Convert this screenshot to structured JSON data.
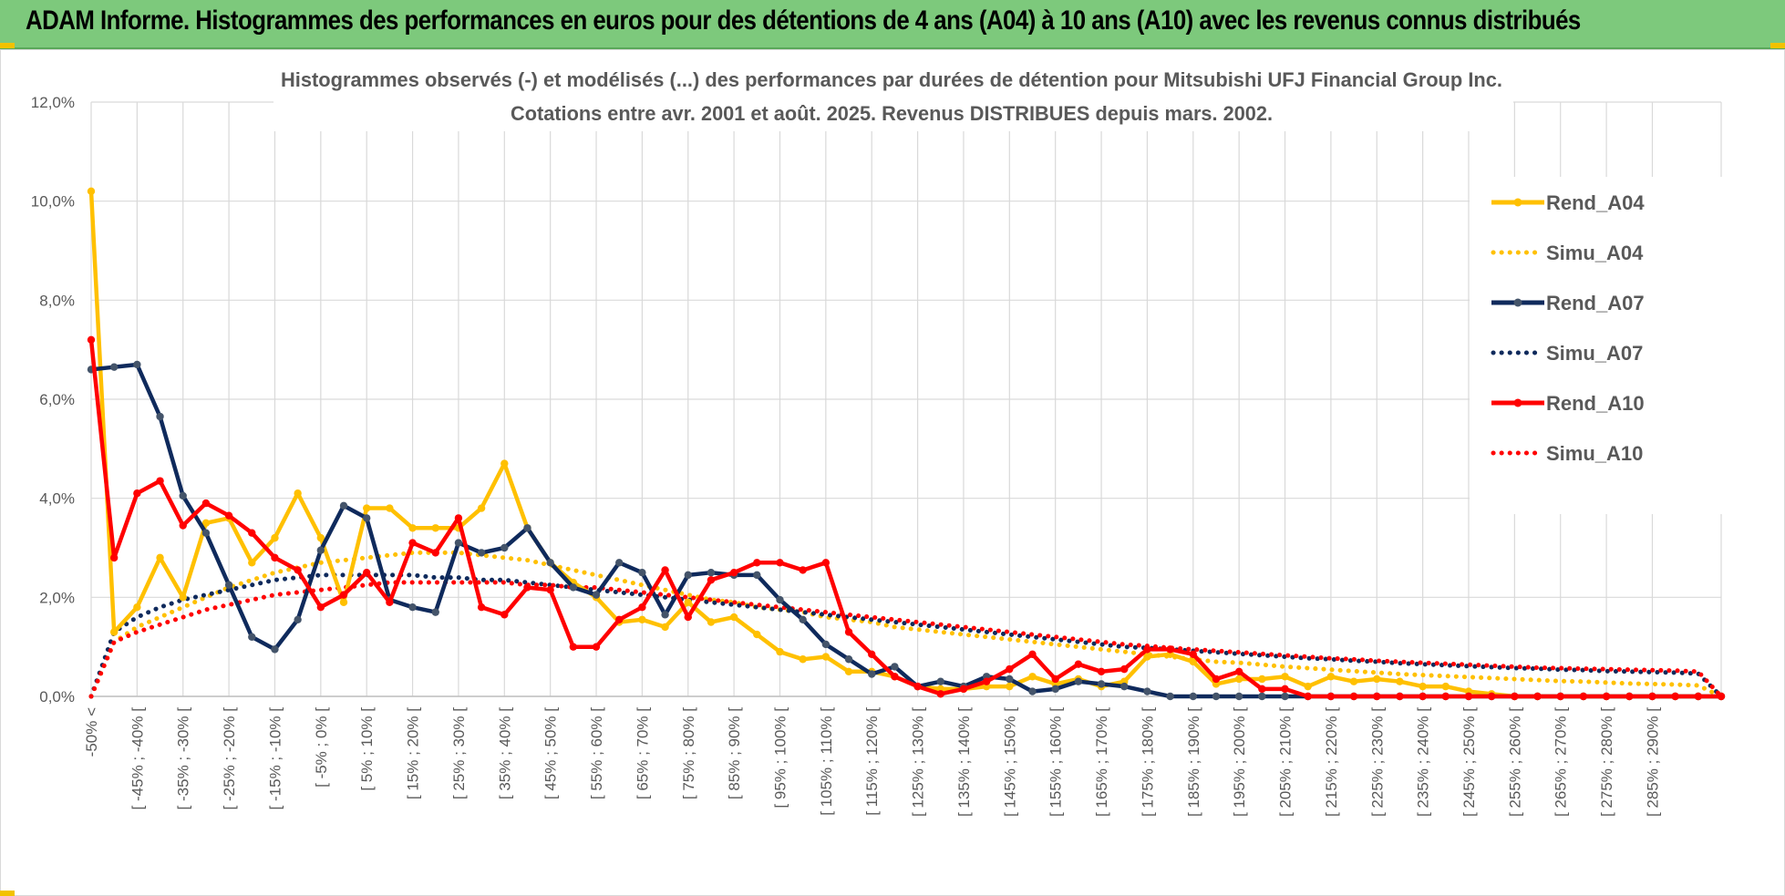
{
  "banner": {
    "title": "ADAM Informe. Histogrammes des performances en euros pour des détentions de 4 ans (A04) à 10 ans (A10) avec les revenus connus distribués"
  },
  "chart_data": {
    "type": "line",
    "title_line1": "Histogrammes observés (-) et modélisés (...) des performances par durées de détention pour Mitsubishi UFJ Financial Group Inc.",
    "title_line2": "Cotations entre avr. 2001 et août. 2025. Revenus DISTRIBUES depuis mars. 2002.",
    "y_ticks": [
      "0,0%",
      "2,0%",
      "4,0%",
      "6,0%",
      "8,0%",
      "10,0%",
      "12,0%"
    ],
    "ylim": [
      0,
      12
    ],
    "grid": true,
    "legend_position": "right",
    "x_labels": [
      "-50% <",
      "[ -45% ; -40% [",
      "[ -35% ; -30% [",
      "[ -25% ; -20% [",
      "[ -15% ; -10% [",
      "[ -5% ; 0% [",
      "[ 5% ; 10% [",
      "[ 15% ; 20% [",
      "[ 25% ; 30% [",
      "[ 35% ; 40% [",
      "[ 45% ; 50% [",
      "[ 55% ; 60% [",
      "[ 65% ; 70% [",
      "[ 75% ; 80% [",
      "[ 85% ; 90% [",
      "[ 95% ; 100% [",
      "[ 105% ; 110% [",
      "[ 115% ; 120% [",
      "[ 125% ; 130% [",
      "[ 135% ; 140% [",
      "[ 145% ; 150% [",
      "[ 155% ; 160% [",
      "[ 165% ; 170% [",
      "[ 175% ; 180% [",
      "[ 185% ; 190% [",
      "[ 195% ; 200% [",
      "[ 205% ; 210% [",
      "[ 215% ; 220% [",
      "[ 225% ; 230% [",
      "[ 235% ; 240% [",
      "[ 245% ; 250% [",
      "[ 255% ; 260% [",
      "[ 265% ; 270% [",
      "[ 275% ; 280% [",
      "[ 285% ; 290% ["
    ],
    "series": [
      {
        "name": "Rend_A04",
        "style": "solid",
        "color": "#ffc000",
        "values": [
          10.2,
          1.3,
          1.8,
          2.8,
          2.0,
          3.5,
          3.6,
          2.7,
          3.2,
          4.1,
          3.2,
          1.9,
          3.8,
          3.8,
          3.4,
          3.4,
          3.4,
          3.8,
          4.7,
          3.4,
          2.7,
          2.3,
          2.0,
          1.5,
          1.55,
          1.4,
          1.9,
          1.5,
          1.6,
          1.25,
          0.9,
          0.75,
          0.8,
          0.5,
          0.5,
          0.4,
          0.2,
          0.15,
          0.15,
          0.2,
          0.2,
          0.4,
          0.25,
          0.35,
          0.2,
          0.3,
          0.8,
          0.85,
          0.7,
          0.25,
          0.35,
          0.35,
          0.4,
          0.2,
          0.4,
          0.3,
          0.35,
          0.3,
          0.2,
          0.2,
          0.1,
          0.05,
          0.0,
          0.0,
          0.0,
          0.0,
          0.0,
          0.0,
          0.0,
          0.0,
          0.0,
          0.0
        ]
      },
      {
        "name": "Simu_A04",
        "style": "dotted",
        "color": "#ffc000",
        "values": [
          0.0,
          1.1,
          1.4,
          1.6,
          1.8,
          2.0,
          2.2,
          2.35,
          2.5,
          2.6,
          2.7,
          2.75,
          2.8,
          2.85,
          2.9,
          2.9,
          2.9,
          2.85,
          2.8,
          2.75,
          2.65,
          2.55,
          2.45,
          2.35,
          2.25,
          2.15,
          2.05,
          1.95,
          1.9,
          1.8,
          1.75,
          1.7,
          1.6,
          1.55,
          1.5,
          1.4,
          1.35,
          1.3,
          1.25,
          1.2,
          1.15,
          1.1,
          1.05,
          1.0,
          0.95,
          0.9,
          0.85,
          0.8,
          0.75,
          0.7,
          0.68,
          0.64,
          0.6,
          0.57,
          0.54,
          0.51,
          0.48,
          0.45,
          0.43,
          0.41,
          0.39,
          0.37,
          0.35,
          0.33,
          0.31,
          0.3,
          0.28,
          0.26,
          0.25,
          0.24,
          0.22,
          0.0
        ]
      },
      {
        "name": "Rend_A07",
        "style": "solid",
        "color": "#0f2a5c",
        "values": [
          6.6,
          6.65,
          6.7,
          5.65,
          4.05,
          3.3,
          2.25,
          1.2,
          0.95,
          1.55,
          2.95,
          3.85,
          3.6,
          1.95,
          1.8,
          1.7,
          3.1,
          2.9,
          3.0,
          3.4,
          2.7,
          2.2,
          2.05,
          2.7,
          2.5,
          1.65,
          2.45,
          2.5,
          2.45,
          2.45,
          1.95,
          1.55,
          1.05,
          0.75,
          0.45,
          0.6,
          0.2,
          0.3,
          0.2,
          0.4,
          0.35,
          0.1,
          0.15,
          0.3,
          0.25,
          0.2,
          0.1,
          0.0,
          0.0,
          0.0,
          0.0,
          0.0,
          0.0,
          0.0,
          0.0,
          0.0,
          0.0,
          0.0,
          0.0,
          0.0,
          0.0,
          0.0,
          0.0,
          0.0,
          0.0,
          0.0,
          0.0,
          0.0,
          0.0,
          0.0,
          0.0,
          0.0
        ]
      },
      {
        "name": "Simu_A07",
        "style": "dotted",
        "color": "#0f2a5c",
        "values": [
          0.0,
          1.3,
          1.6,
          1.8,
          1.95,
          2.05,
          2.15,
          2.25,
          2.35,
          2.4,
          2.45,
          2.45,
          2.45,
          2.45,
          2.45,
          2.4,
          2.4,
          2.35,
          2.35,
          2.3,
          2.25,
          2.2,
          2.15,
          2.1,
          2.05,
          2.0,
          1.95,
          1.9,
          1.85,
          1.8,
          1.75,
          1.7,
          1.65,
          1.6,
          1.55,
          1.5,
          1.45,
          1.4,
          1.35,
          1.3,
          1.25,
          1.2,
          1.15,
          1.1,
          1.05,
          1.0,
          0.98,
          0.95,
          0.92,
          0.89,
          0.86,
          0.83,
          0.8,
          0.77,
          0.75,
          0.72,
          0.7,
          0.67,
          0.65,
          0.63,
          0.61,
          0.59,
          0.57,
          0.56,
          0.54,
          0.53,
          0.51,
          0.5,
          0.49,
          0.48,
          0.46,
          0.0
        ]
      },
      {
        "name": "Rend_A10",
        "style": "solid",
        "color": "#ff0000",
        "values": [
          7.2,
          2.8,
          4.1,
          4.35,
          3.45,
          3.9,
          3.65,
          3.3,
          2.8,
          2.55,
          1.8,
          2.05,
          2.5,
          1.9,
          3.1,
          2.9,
          3.6,
          1.8,
          1.65,
          2.2,
          2.15,
          1.0,
          1.0,
          1.55,
          1.8,
          2.55,
          1.6,
          2.35,
          2.5,
          2.7,
          2.7,
          2.55,
          2.7,
          1.3,
          0.85,
          0.4,
          0.2,
          0.05,
          0.15,
          0.3,
          0.55,
          0.85,
          0.35,
          0.65,
          0.5,
          0.55,
          0.95,
          0.95,
          0.85,
          0.35,
          0.5,
          0.15,
          0.15,
          0.0,
          0.0,
          0.0,
          0.0,
          0.0,
          0.0,
          0.0,
          0.0,
          0.0,
          0.0,
          0.0,
          0.0,
          0.0,
          0.0,
          0.0,
          0.0,
          0.0,
          0.0,
          0.0
        ]
      },
      {
        "name": "Simu_A10",
        "style": "dotted",
        "color": "#ff0000",
        "values": [
          0.0,
          1.1,
          1.3,
          1.45,
          1.6,
          1.75,
          1.85,
          1.95,
          2.05,
          2.1,
          2.15,
          2.2,
          2.25,
          2.3,
          2.3,
          2.3,
          2.3,
          2.3,
          2.3,
          2.25,
          2.25,
          2.2,
          2.2,
          2.15,
          2.1,
          2.05,
          2.0,
          1.95,
          1.9,
          1.85,
          1.8,
          1.75,
          1.7,
          1.65,
          1.6,
          1.55,
          1.5,
          1.45,
          1.4,
          1.35,
          1.3,
          1.25,
          1.2,
          1.15,
          1.1,
          1.05,
          1.02,
          0.98,
          0.95,
          0.92,
          0.89,
          0.86,
          0.83,
          0.8,
          0.77,
          0.75,
          0.72,
          0.7,
          0.68,
          0.66,
          0.64,
          0.62,
          0.6,
          0.58,
          0.57,
          0.56,
          0.55,
          0.54,
          0.53,
          0.52,
          0.5,
          0.0
        ]
      }
    ]
  }
}
